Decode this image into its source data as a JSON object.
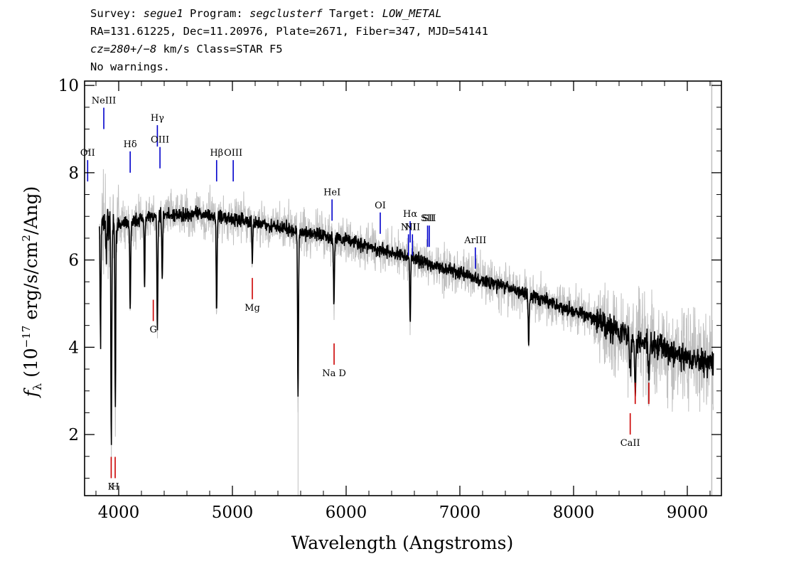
{
  "header": {
    "survey_label": "Survey:",
    "survey": "segue1",
    "program_label": "Program:",
    "program": "segclusterf",
    "target_label": "Target:",
    "target": "LOW_METAL",
    "line2": "RA=131.61225, Dec=11.20976, Plate=2671, Fiber=347, MJD=54141",
    "cz": "cz=280+/−8",
    "line3_rest": " km/s Class=STAR F5",
    "line4": "No warnings."
  },
  "chart_data": {
    "type": "line",
    "xlabel": "Wavelength (Angstroms)",
    "ylabel_parts": {
      "symbol": "f",
      "sub": "λ",
      "pre": " (10",
      "exp1": "−17",
      "mid": " erg/s/cm",
      "exp2": "2",
      "post": "/Ang)"
    },
    "xlim": [
      3700,
      9300
    ],
    "ylim": [
      0.6,
      10.1
    ],
    "xticks": [
      4000,
      5000,
      6000,
      7000,
      8000,
      9000
    ],
    "yticks": [
      2,
      4,
      6,
      8,
      10
    ],
    "xtick_labels": [
      "4000",
      "5000",
      "6000",
      "7000",
      "8000",
      "9000"
    ],
    "ytick_labels": [
      "2",
      "4",
      "6",
      "8",
      "10"
    ],
    "grid": false,
    "series": [
      {
        "color": "#000000",
        "continuum": [
          [
            3830,
            6.9
          ],
          [
            4000,
            6.8
          ],
          [
            4300,
            7.0
          ],
          [
            4700,
            7.05
          ],
          [
            5000,
            6.95
          ],
          [
            5500,
            6.7
          ],
          [
            6000,
            6.45
          ],
          [
            6500,
            6.1
          ],
          [
            7000,
            5.7
          ],
          [
            7500,
            5.3
          ],
          [
            8000,
            4.85
          ],
          [
            8500,
            4.25
          ],
          [
            9000,
            3.75
          ],
          [
            9230,
            3.6
          ]
        ],
        "absorption_lines": [
          [
            3840,
            4.1
          ],
          [
            3890,
            6.0
          ],
          [
            3935,
            1.6
          ],
          [
            3970,
            2.7
          ],
          [
            4101,
            4.8
          ],
          [
            4227,
            5.5
          ],
          [
            4340,
            4.3
          ],
          [
            4383,
            5.6
          ],
          [
            4861,
            4.8
          ],
          [
            5175,
            6.0
          ],
          [
            5577,
            2.8
          ],
          [
            5893,
            4.9
          ],
          [
            6563,
            4.5
          ],
          [
            7605,
            4.0
          ],
          [
            8498,
            3.4
          ],
          [
            8542,
            3.1
          ],
          [
            8662,
            3.3
          ]
        ]
      },
      {
        "color": "#bfbfbf",
        "noise_envelope": "gray"
      }
    ],
    "emission_lines": [
      {
        "label": "NeIII",
        "x": 3869,
        "y": 9.0
      },
      {
        "label": "Hδ",
        "x": 4101,
        "y": 8.0
      },
      {
        "label": "Hγ",
        "x": 4340,
        "y": 8.6
      },
      {
        "label": "OIII",
        "x": 4363,
        "y": 8.1
      },
      {
        "label": "Hβ",
        "x": 4861,
        "y": 7.8
      },
      {
        "label": "OIII",
        "x": 5007,
        "y": 7.8
      },
      {
        "label": "HeI",
        "x": 5876,
        "y": 6.9
      },
      {
        "label": "OI",
        "x": 6300,
        "y": 6.6
      },
      {
        "label": "NII",
        "x": 6548,
        "y": 6.1
      },
      {
        "label": "Hα",
        "x": 6563,
        "y": 6.4
      },
      {
        "label": "NII",
        "x": 6583,
        "y": 6.1
      },
      {
        "label": "SII",
        "x": 6716,
        "y": 6.3
      },
      {
        "label": "SII",
        "x": 6731,
        "y": 6.3
      },
      {
        "label": "ArIII",
        "x": 7136,
        "y": 5.8
      },
      {
        "label": "OII",
        "x": 3727,
        "y": 7.8
      }
    ],
    "absorption_labels": [
      {
        "label": "K",
        "x": 3934,
        "y": 1.0
      },
      {
        "label": "H",
        "x": 3969,
        "y": 1.0
      },
      {
        "label": "G",
        "x": 4304,
        "y": 4.6
      },
      {
        "label": "Mg",
        "x": 5175,
        "y": 5.1
      },
      {
        "label": "Na D",
        "x": 5894,
        "y": 3.6
      },
      {
        "label": "CaII",
        "x": 8498,
        "y": 2.0
      },
      {
        "label": "CaII",
        "x": 8542,
        "y": 2.7
      },
      {
        "label": "CaII",
        "x": 8662,
        "y": 2.7
      }
    ]
  }
}
